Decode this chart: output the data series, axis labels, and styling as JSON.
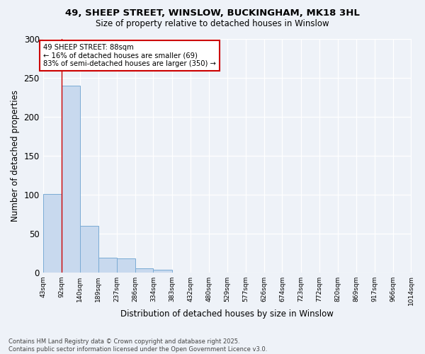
{
  "title1": "49, SHEEP STREET, WINSLOW, BUCKINGHAM, MK18 3HL",
  "title2": "Size of property relative to detached houses in Winslow",
  "xlabel": "Distribution of detached houses by size in Winslow",
  "ylabel": "Number of detached properties",
  "bar_color": "#c8d9ee",
  "bar_edge_color": "#7aabd4",
  "background_color": "#eef2f8",
  "grid_color": "#ffffff",
  "bin_edges": [
    43,
    92,
    140,
    189,
    237,
    286,
    334,
    383,
    432,
    480,
    529,
    577,
    626,
    674,
    723,
    772,
    820,
    869,
    917,
    966,
    1014
  ],
  "bin_labels": [
    "43sqm",
    "92sqm",
    "140sqm",
    "189sqm",
    "237sqm",
    "286sqm",
    "334sqm",
    "383sqm",
    "432sqm",
    "480sqm",
    "529sqm",
    "577sqm",
    "626sqm",
    "674sqm",
    "723sqm",
    "772sqm",
    "820sqm",
    "869sqm",
    "917sqm",
    "966sqm",
    "1014sqm"
  ],
  "values": [
    101,
    240,
    60,
    19,
    18,
    5,
    3,
    0,
    0,
    0,
    0,
    0,
    0,
    0,
    0,
    0,
    0,
    0,
    0,
    0
  ],
  "property_line_x": 92,
  "property_line_color": "#cc0000",
  "annotation_text": "49 SHEEP STREET: 88sqm\n← 16% of detached houses are smaller (69)\n83% of semi-detached houses are larger (350) →",
  "footer_line1": "Contains HM Land Registry data © Crown copyright and database right 2025.",
  "footer_line2": "Contains public sector information licensed under the Open Government Licence v3.0.",
  "ylim": [
    0,
    300
  ],
  "yticks": [
    0,
    50,
    100,
    150,
    200,
    250,
    300
  ]
}
